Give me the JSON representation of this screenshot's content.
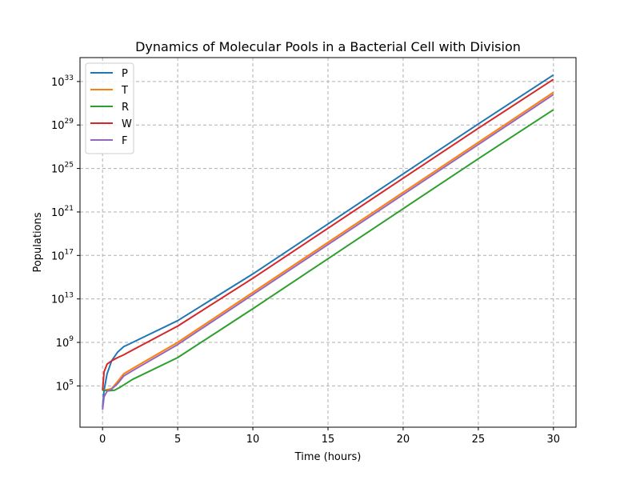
{
  "chart_data": {
    "type": "line",
    "title": "Dynamics of Molecular Pools in a Bacterial Cell with Division",
    "xlabel": "Time (hours)",
    "ylabel": "Populations",
    "yscale": "log",
    "xlim": [
      -1.5,
      31.5
    ],
    "ylim_log10": [
      1.2,
      35.2
    ],
    "x_ticks": [
      0,
      5,
      10,
      15,
      20,
      25,
      30
    ],
    "x_tick_labels": [
      "0",
      "5",
      "10",
      "15",
      "20",
      "25",
      "30"
    ],
    "y_tick_exponents": [
      5,
      9,
      13,
      17,
      21,
      25,
      29,
      33
    ],
    "y_tick_base": "10",
    "grid": true,
    "legend_position": "top-left",
    "series": [
      {
        "name": "P",
        "color": "#1f77b4",
        "points_log10": [
          [
            0,
            3.0
          ],
          [
            0.1,
            4.6
          ],
          [
            0.3,
            6.1
          ],
          [
            0.6,
            7.3
          ],
          [
            1.0,
            8.1
          ],
          [
            1.4,
            8.6
          ],
          [
            2,
            9.0
          ],
          [
            5,
            11.0
          ],
          [
            10,
            15.3
          ],
          [
            15,
            19.9
          ],
          [
            20,
            24.5
          ],
          [
            25,
            29.1
          ],
          [
            30,
            33.6
          ]
        ]
      },
      {
        "name": "T",
        "color": "#ff7f0e",
        "points_log10": [
          [
            0,
            4.6
          ],
          [
            0.3,
            4.65
          ],
          [
            0.6,
            4.75
          ],
          [
            1.0,
            5.4
          ],
          [
            1.4,
            6.1
          ],
          [
            2,
            6.6
          ],
          [
            5,
            9.0
          ],
          [
            10,
            13.6
          ],
          [
            15,
            18.2
          ],
          [
            20,
            22.8
          ],
          [
            25,
            27.4
          ],
          [
            30,
            32.0
          ]
        ]
      },
      {
        "name": "R",
        "color": "#2ca02c",
        "points_log10": [
          [
            0,
            4.6
          ],
          [
            0.4,
            4.55
          ],
          [
            0.8,
            4.6
          ],
          [
            1.2,
            4.9
          ],
          [
            2,
            5.6
          ],
          [
            5,
            7.6
          ],
          [
            10,
            12.1
          ],
          [
            15,
            16.7
          ],
          [
            20,
            21.3
          ],
          [
            25,
            25.9
          ],
          [
            30,
            30.4
          ]
        ]
      },
      {
        "name": "W",
        "color": "#d62728",
        "points_log10": [
          [
            0,
            4.6
          ],
          [
            0.1,
            6.3
          ],
          [
            0.3,
            7.0
          ],
          [
            0.6,
            7.3
          ],
          [
            1.0,
            7.6
          ],
          [
            1.4,
            7.85
          ],
          [
            2,
            8.3
          ],
          [
            5,
            10.5
          ],
          [
            10,
            14.9
          ],
          [
            15,
            19.5
          ],
          [
            20,
            24.1
          ],
          [
            25,
            28.7
          ],
          [
            30,
            33.2
          ]
        ]
      },
      {
        "name": "F",
        "color": "#9467bd",
        "points_log10": [
          [
            0,
            2.8
          ],
          [
            0.1,
            4.0
          ],
          [
            0.3,
            4.5
          ],
          [
            0.6,
            4.7
          ],
          [
            1.0,
            5.2
          ],
          [
            1.4,
            5.9
          ],
          [
            2,
            6.4
          ],
          [
            5,
            8.8
          ],
          [
            10,
            13.4
          ],
          [
            15,
            18.0
          ],
          [
            20,
            22.6
          ],
          [
            25,
            27.2
          ],
          [
            30,
            31.8
          ]
        ]
      }
    ]
  }
}
